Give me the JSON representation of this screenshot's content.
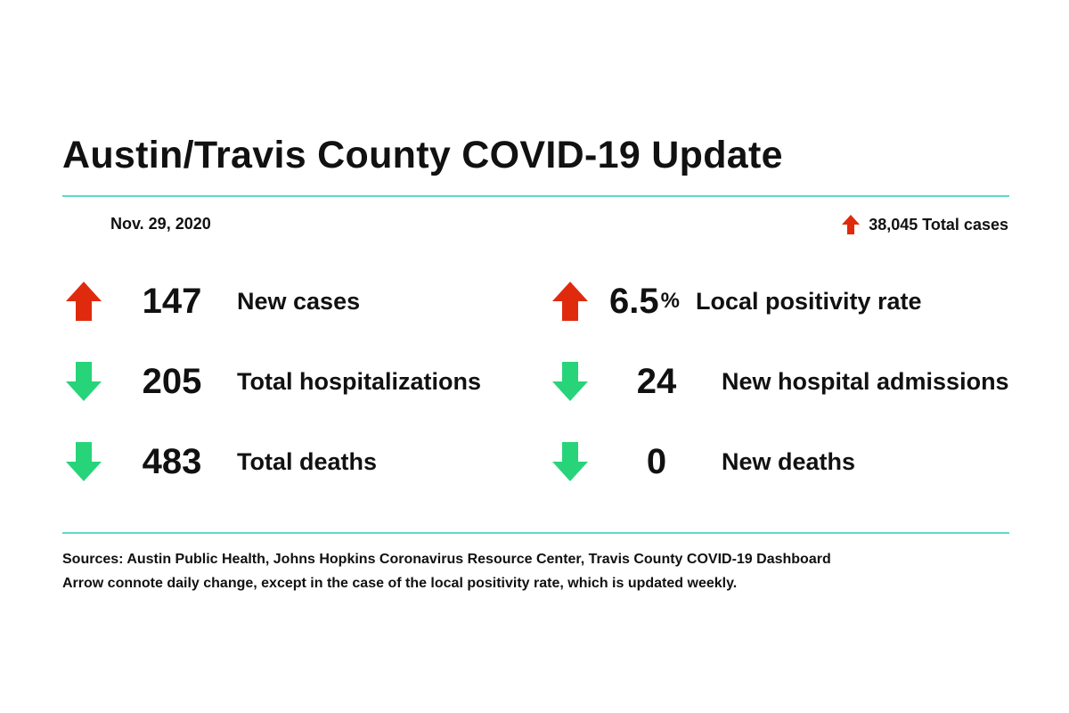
{
  "header": {
    "title": "Austin/Travis County COVID-19 Update",
    "date": "Nov. 29, 2020",
    "total_cases": "38,045 Total cases",
    "total_cases_trend": "up"
  },
  "colors": {
    "accent_rule": "#5fd9c8",
    "up_arrow": "#e02a0e",
    "down_arrow": "#27d47a"
  },
  "stats": {
    "new_cases": {
      "value": "147",
      "label": "New cases",
      "trend": "up"
    },
    "total_hospitalizations": {
      "value": "205",
      "label": "Total hospitalizations",
      "trend": "down"
    },
    "total_deaths": {
      "value": "483",
      "label": "Total deaths",
      "trend": "down"
    },
    "local_positivity_rate": {
      "value": "6.5",
      "unit": "%",
      "label": "Local positivity rate",
      "trend": "up"
    },
    "new_hospital_admissions": {
      "value": "24",
      "label": "New hospital admissions",
      "trend": "down"
    },
    "new_deaths": {
      "value": "0",
      "label": "New deaths",
      "trend": "down"
    }
  },
  "footer": {
    "sources": "Sources: Austin Public Health, Johns Hopkins Coronavirus Resource Center, Travis County COVID-19 Dashboard",
    "note": "Arrow connote daily change, except in the case of the local positivity rate, which is updated weekly."
  }
}
